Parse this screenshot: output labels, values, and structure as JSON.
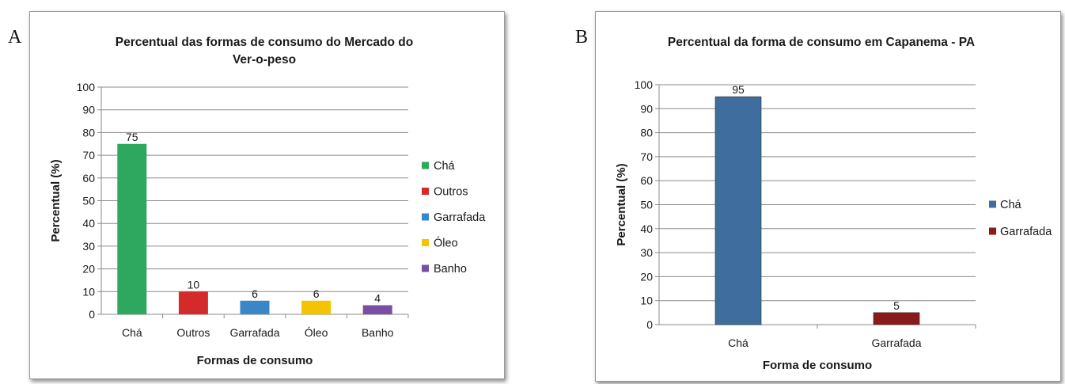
{
  "chart_data": [
    {
      "panel_label": "A",
      "type": "bar",
      "title": "Percentual das formas de consumo do Mercado do Ver-o-peso",
      "title_lines": [
        "Percentual das formas de consumo do Mercado do",
        "Ver-o-peso"
      ],
      "xlabel": "Formas de consumo",
      "ylabel": "Percentual (%)",
      "categories": [
        "Chá",
        "Outros",
        "Garrafada",
        "Óleo",
        "Banho"
      ],
      "values": [
        75,
        10,
        6,
        6,
        4
      ],
      "colors": [
        "#2ea85f",
        "#d42a2a",
        "#3a87c8",
        "#f5c400",
        "#7a4ea3"
      ],
      "data_labels": [
        "75",
        "10",
        "6",
        "6",
        "4"
      ],
      "ylim": [
        0,
        100
      ],
      "yticks": [
        "0",
        "10",
        "20",
        "30",
        "40",
        "50",
        "60",
        "70",
        "80",
        "90",
        "100"
      ],
      "grid": true,
      "legend": {
        "placement": "right",
        "entries": [
          "Chá",
          "Outros",
          "Garrafada",
          "Óleo",
          "Banho"
        ]
      }
    },
    {
      "panel_label": "B",
      "type": "bar",
      "title": "Percentual da forma de consumo em Capanema - PA",
      "title_lines": [
        "Percentual da forma de consumo em Capanema - PA"
      ],
      "xlabel": "Forma de consumo",
      "ylabel": "Percentual (%)",
      "categories": [
        "Chá",
        "Garrafada"
      ],
      "values": [
        95,
        5
      ],
      "colors": [
        "#3f6e9e",
        "#8b1a1a"
      ],
      "data_labels": [
        "95",
        "5"
      ],
      "ylim": [
        0,
        100
      ],
      "yticks": [
        "0",
        "10",
        "20",
        "30",
        "40",
        "50",
        "60",
        "70",
        "80",
        "90",
        "100"
      ],
      "grid": true,
      "legend": {
        "placement": "right",
        "entries": [
          "Chá",
          "Garrafada"
        ]
      }
    }
  ]
}
